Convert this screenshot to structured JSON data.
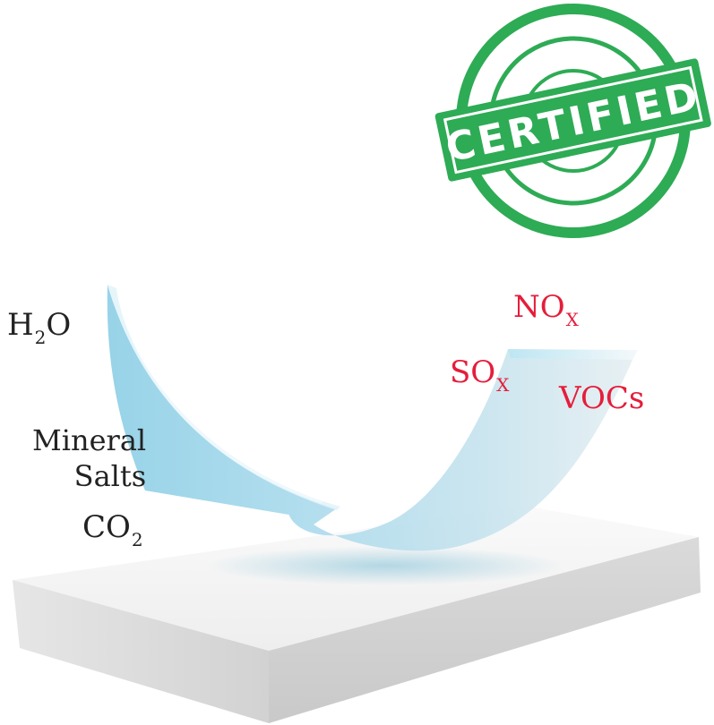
{
  "labels": {
    "water": {
      "main": "H",
      "sub": "2",
      "tail": "O"
    },
    "mineral_salts": {
      "line1": "Mineral",
      "line2": "Salts"
    },
    "co2": {
      "main": "CO",
      "sub": "2"
    },
    "nox": {
      "main": "NO",
      "sub": "X"
    },
    "sox": {
      "main": "SO",
      "sub": "X"
    },
    "vocs": "VOCs"
  },
  "stamp": {
    "text": "CERTIFIED",
    "color": "#2eab55"
  },
  "colors": {
    "input_text": "#222222",
    "pollutant_text": "#e51d3b",
    "sheet_light": "#dff1f8",
    "sheet_mid": "#a9d8ea",
    "sheet_dark": "#7cc3de",
    "base_top": "#f4f4f4",
    "base_side": "#d6d6d6"
  }
}
